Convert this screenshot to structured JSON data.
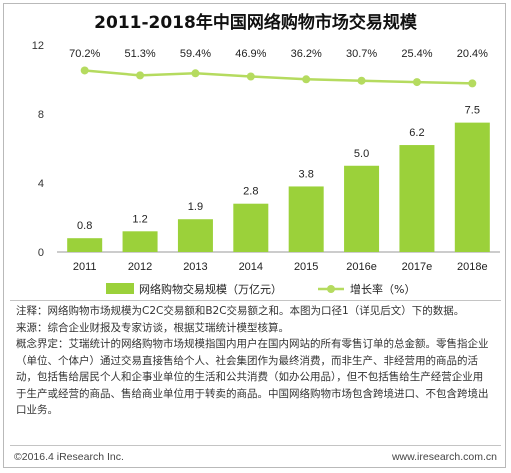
{
  "chart_data": {
    "type": "bar",
    "title": "2011-2018年中国网络购物市场交易规模",
    "categories": [
      "2011",
      "2012",
      "2013",
      "2014",
      "2015",
      "2016e",
      "2017e",
      "2018e"
    ],
    "ylim": [
      0,
      12
    ],
    "yticks": [
      "0",
      "4",
      "8",
      "12"
    ],
    "grid": false,
    "legend_position": "bottom",
    "series": [
      {
        "name": "网络购物交易规模（万亿元）",
        "type": "bar",
        "values": [
          0.8,
          1.2,
          1.9,
          2.8,
          3.8,
          5.0,
          6.2,
          7.5
        ],
        "labels": [
          "0.8",
          "1.2",
          "1.9",
          "2.8",
          "3.8",
          "5.0",
          "6.2",
          "7.5"
        ],
        "color": "#9bd13a"
      },
      {
        "name": "增长率（%）",
        "type": "line",
        "values": [
          70.2,
          51.3,
          59.4,
          46.9,
          36.2,
          30.7,
          25.4,
          20.4
        ],
        "labels": [
          "70.2%",
          "51.3%",
          "59.4%",
          "46.9%",
          "36.2%",
          "30.7%",
          "25.4%",
          "20.4%"
        ],
        "color": "#b5db5f"
      }
    ]
  },
  "notes": {
    "line1": "注释：网络购物市场规模为C2C交易额和B2C交易额之和。本图为口径1（详见后文）下的数据。",
    "line2": "来源：综合企业财报及专家访谈，根据艾瑞统计模型核算。",
    "line3": "概念界定：艾瑞统计的网络购物市场规模指国内用户在国内网站的所有零售订单的总金额。零售指企业",
    "line4": "（单位、个体户）通过交易直接售给个人、社会集团作为最终消费，而非生产、非经营用的商品的活",
    "line5": "动，包括售给居民个人和企事业单位的生活和公共消费（如办公用品），但不包括售给生产经营企业用",
    "line6": "于生产或经营的商品、售给商业单位用于转卖的商品。中国网络购物市场包含跨境进口、不包含跨境出",
    "line7": "口业务。"
  },
  "footer": {
    "copyright": "©2016.4 iResearch Inc.",
    "website": "www.iresearch.com.cn"
  }
}
